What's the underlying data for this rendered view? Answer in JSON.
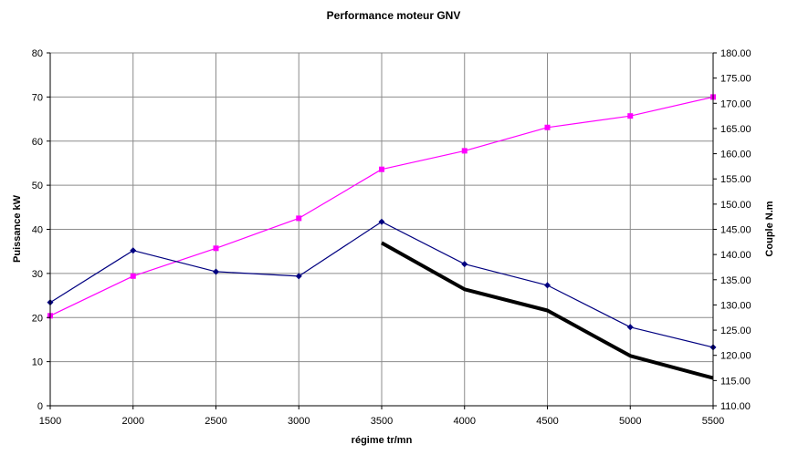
{
  "chart_data": {
    "type": "line",
    "title": "Performance moteur GNV",
    "xlabel": "régime tr/mn",
    "ylabel": "Puissance kW",
    "y2label": "Couple N.m",
    "x": [
      1500,
      2000,
      2500,
      3000,
      3500,
      4000,
      4500,
      5000,
      5500
    ],
    "x_tick_labels": [
      "1500",
      "2000",
      "2500",
      "3000",
      "3500",
      "4000",
      "4500",
      "5000",
      "5500"
    ],
    "ylim": [
      0,
      80
    ],
    "y_tick_labels": [
      "0",
      "10",
      "20",
      "30",
      "40",
      "50",
      "60",
      "70",
      "80"
    ],
    "y2lim": [
      110,
      180
    ],
    "y2_tick_labels": [
      "110.00",
      "115.00",
      "120.00",
      "125.00",
      "130.00",
      "135.00",
      "140.00",
      "145.00",
      "150.00",
      "155.00",
      "160.00",
      "165.00",
      "170.00",
      "175.00",
      "180.00"
    ],
    "grid": true,
    "series": [
      {
        "axis": "left",
        "color": "#ff00ff",
        "marker": "square",
        "x": [
          1500,
          2000,
          2500,
          3000,
          3500,
          4000,
          4500,
          5000,
          5500
        ],
        "values": [
          20.4,
          29.4,
          35.7,
          42.5,
          53.6,
          57.8,
          63.1,
          65.7,
          70.0
        ]
      },
      {
        "axis": "right",
        "color": "#000080",
        "marker": "diamond",
        "x": [
          1500,
          2000,
          2500,
          3000,
          3500,
          4000,
          4500,
          5000,
          5500
        ],
        "values": [
          130.5,
          140.8,
          136.6,
          135.7,
          146.5,
          138.1,
          133.9,
          125.6,
          121.6
        ]
      },
      {
        "axis": "right",
        "color": "#000000",
        "marker": "none",
        "line_style": "thick",
        "x": [
          3500,
          4000,
          4500,
          5000,
          5500
        ],
        "values": [
          142.3,
          133.1,
          128.9,
          119.9,
          115.5
        ]
      }
    ]
  }
}
